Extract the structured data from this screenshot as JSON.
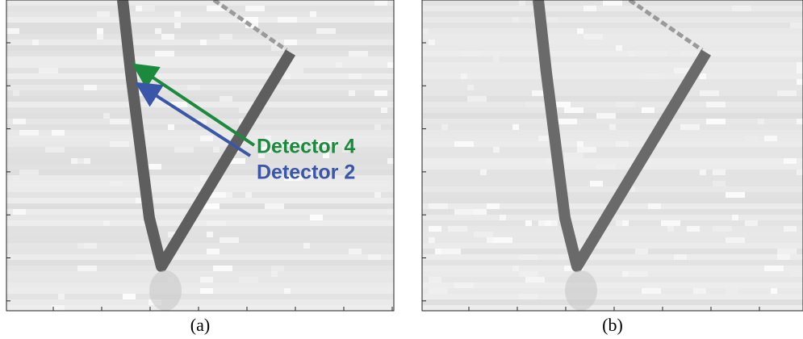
{
  "panels": [
    {
      "label": "(a)",
      "annotations": [
        {
          "text": "Detector 4",
          "color": "#1b8a3c"
        },
        {
          "text": "Detector 2",
          "color": "#3a56a8"
        }
      ]
    },
    {
      "label": "(b)",
      "annotations": []
    }
  ]
}
